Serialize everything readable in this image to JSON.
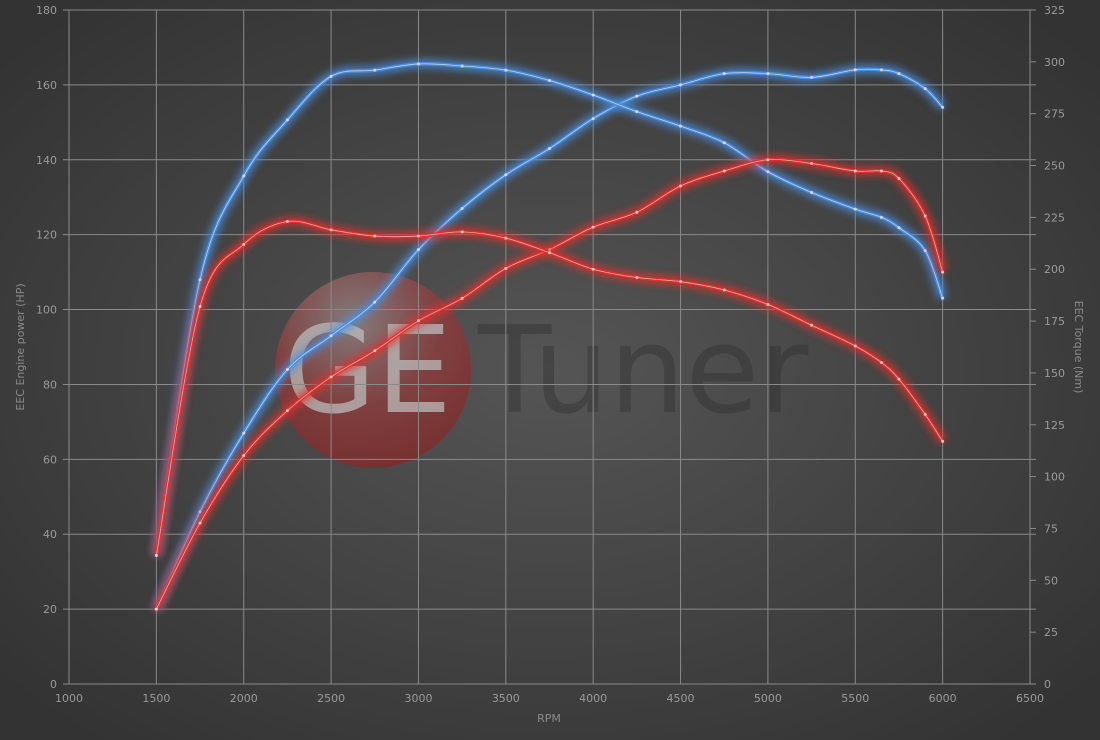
{
  "chart_data": {
    "type": "line",
    "title": "",
    "xlabel": "RPM",
    "ylabel_left": "EEC Engine power (HP)",
    "ylabel_right": "EEC Torque (Nm)",
    "xlim": [
      1000,
      6500
    ],
    "ylim_left": [
      0,
      180
    ],
    "ylim_right": [
      0,
      325
    ],
    "x_ticks": [
      1000,
      1500,
      2000,
      2500,
      3000,
      3500,
      4000,
      4500,
      5000,
      5500,
      6000,
      6500
    ],
    "y_ticks_left": [
      0,
      20,
      40,
      60,
      80,
      100,
      120,
      140,
      160,
      180
    ],
    "y_ticks_right": [
      0,
      25,
      50,
      75,
      100,
      125,
      150,
      175,
      200,
      225,
      250,
      275,
      300,
      325
    ],
    "grid": true,
    "watermark": "GETuner",
    "x": [
      1500,
      1750,
      2000,
      2250,
      2500,
      2750,
      3000,
      3250,
      3500,
      3750,
      4000,
      4250,
      4500,
      4750,
      5000,
      5250,
      5500,
      5650,
      5750,
      5900,
      6000
    ],
    "series": [
      {
        "axis": "left",
        "color": "#4a8fe0",
        "values": [
          20,
          46,
          67,
          84,
          93,
          102,
          116,
          127,
          136,
          143,
          151,
          157,
          160,
          163,
          163,
          162,
          164,
          164,
          163,
          159,
          154
        ]
      },
      {
        "axis": "right",
        "color": "#4a8fe0",
        "values": [
          62,
          195,
          245,
          272,
          293,
          296,
          299,
          298,
          296,
          291,
          284,
          276,
          269,
          261,
          247,
          237,
          229,
          225,
          220,
          209,
          186
        ]
      },
      {
        "axis": "left",
        "color": "#e0302c",
        "values": [
          20,
          43,
          61,
          73,
          82,
          89,
          97,
          103,
          111,
          116,
          122,
          126,
          133,
          137,
          140,
          139,
          137,
          137,
          135,
          125,
          110
        ]
      },
      {
        "axis": "right",
        "color": "#e0302c",
        "values": [
          62,
          182,
          212,
          223,
          219,
          216,
          216,
          218,
          215,
          208,
          200,
          196,
          194,
          190,
          183,
          173,
          163,
          155,
          147,
          130,
          117
        ]
      }
    ]
  }
}
